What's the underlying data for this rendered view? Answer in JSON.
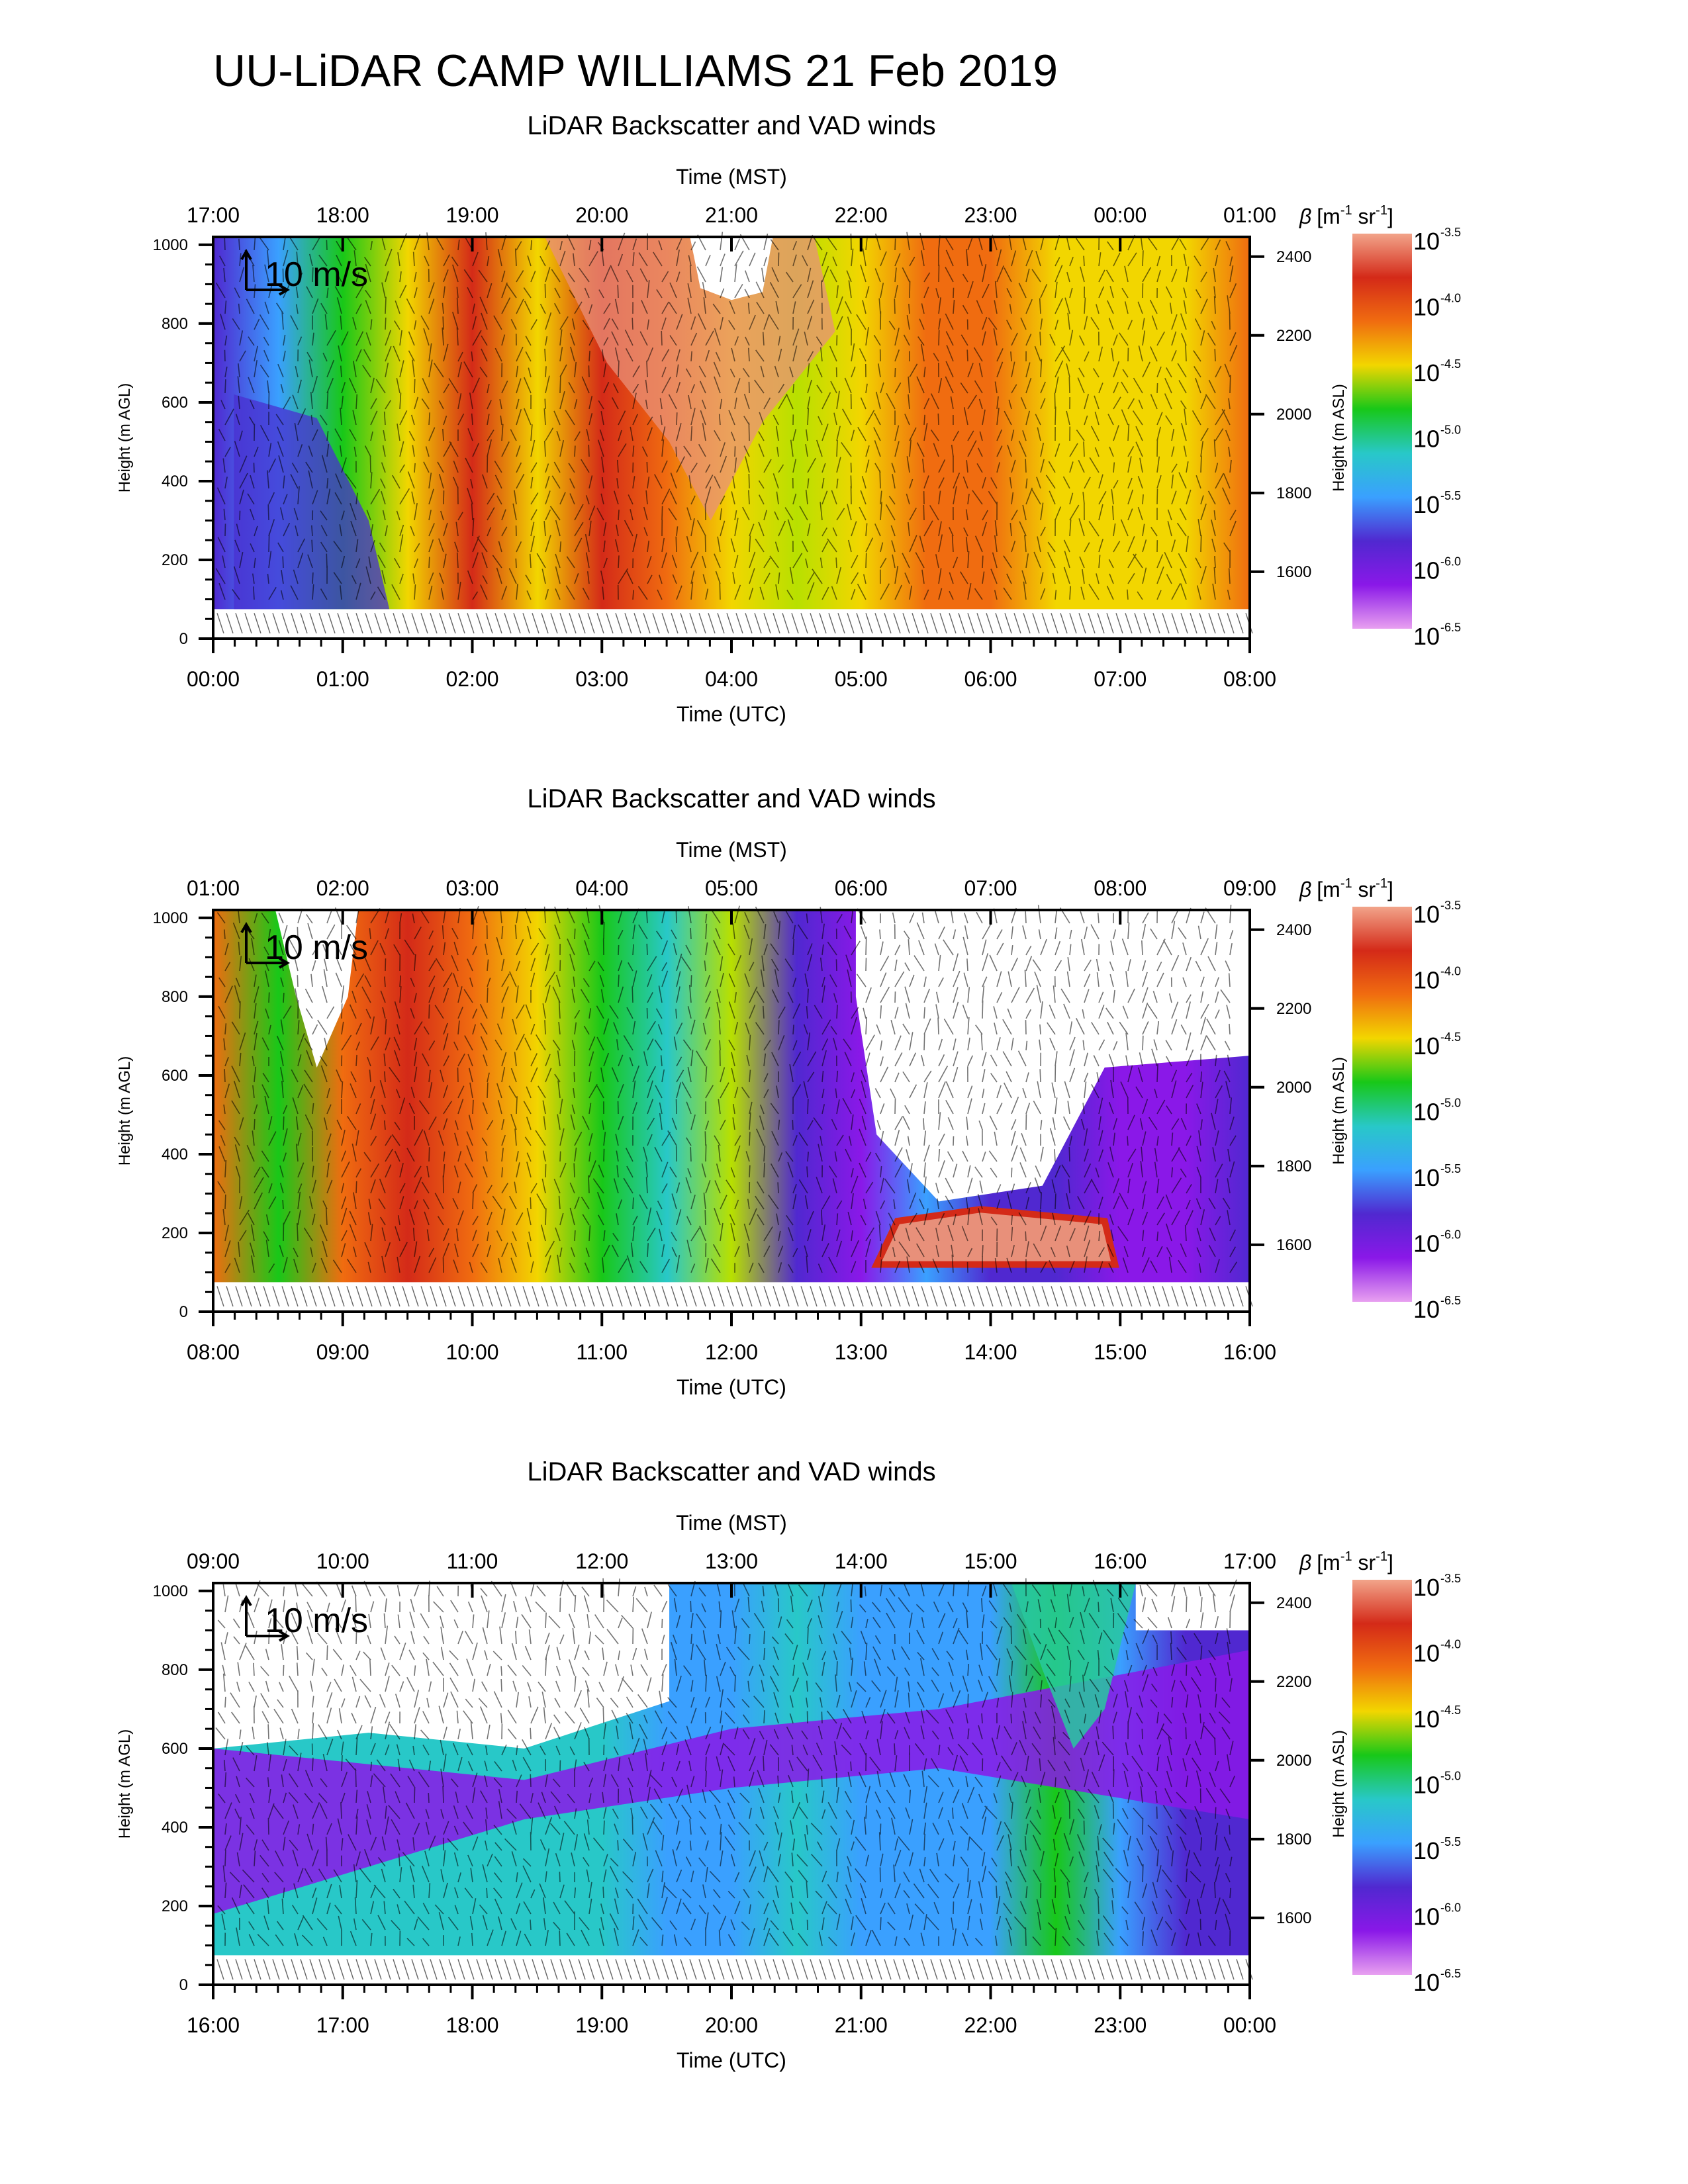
{
  "title": "UU-LiDAR CAMP WILLIAMS 21 Feb 2019",
  "colorbar": {
    "label_html": "β [m⁻¹ sr⁻¹]",
    "label_beta": "β",
    "label_units": "[m",
    "label_exp1": "-1",
    "label_sr": " sr",
    "label_exp2": "-1",
    "label_close": "]",
    "base": "10",
    "exponents": [
      "-3.5",
      "-4.0",
      "-4.5",
      "-5.0",
      "-5.5",
      "-6.0",
      "-6.5"
    ],
    "colors": [
      "#f2a48a",
      "#d42a18",
      "#f06c10",
      "#f2d600",
      "#18c818",
      "#28c8c8",
      "#3aa0ff",
      "#5028d0",
      "#8a18e8",
      "#e8a0f0"
    ]
  },
  "scale_arrow_label": "10 m/s",
  "axis_labels": {
    "x_top": "Time (MST)",
    "x_bottom": "Time (UTC)",
    "y_left": "Height (m AGL)",
    "y_right": "Height (m ASL)"
  },
  "chart_data": [
    {
      "type": "heatmap",
      "title": "LiDAR Backscatter and VAD winds",
      "x_utc_ticks": [
        "00:00",
        "01:00",
        "02:00",
        "03:00",
        "04:00",
        "05:00",
        "06:00",
        "07:00",
        "08:00"
      ],
      "x_mst_ticks": [
        "17:00",
        "18:00",
        "19:00",
        "20:00",
        "21:00",
        "22:00",
        "23:00",
        "00:00",
        "01:00"
      ],
      "y_agl_ticks": [
        0,
        200,
        400,
        600,
        800,
        1000
      ],
      "y_asl_ticks": [
        1600,
        1800,
        2000,
        2200,
        2400
      ],
      "ylim_agl": [
        0,
        1020
      ],
      "backscatter_exponent_profile": [
        -6.0,
        -5.8,
        -5.2,
        -4.6,
        -4.2,
        -4.5,
        -4.2,
        -4.4,
        -4.6,
        -4.8,
        -4.6,
        -4.4,
        -4.3,
        -4.5,
        -4.6,
        -4.5,
        -4.4
      ],
      "features": [
        "dense aerosol plume 02:00-04:30 UTC reaching 1000 m",
        "clean air 00:00-01:30 UTC",
        "small data gap near 1000 m at 04:00 UTC"
      ]
    },
    {
      "type": "heatmap",
      "title": "LiDAR Backscatter and VAD winds",
      "x_utc_ticks": [
        "08:00",
        "09:00",
        "10:00",
        "11:00",
        "12:00",
        "13:00",
        "14:00",
        "15:00",
        "16:00"
      ],
      "x_mst_ticks": [
        "01:00",
        "02:00",
        "03:00",
        "04:00",
        "05:00",
        "06:00",
        "07:00",
        "08:00",
        "09:00"
      ],
      "y_agl_ticks": [
        0,
        200,
        400,
        600,
        800,
        1000
      ],
      "y_asl_ticks": [
        1600,
        1800,
        2000,
        2200,
        2400
      ],
      "ylim_agl": [
        0,
        1020
      ],
      "backscatter_exponent_profile": [
        -4.4,
        -5.2,
        -4.4,
        -4.2,
        -4.3,
        -4.6,
        -5.0,
        -5.5,
        -4.8,
        -6.0,
        -6.2,
        -5.8,
        -6.0,
        -6.1,
        -6.2,
        -6.3,
        -6.1
      ],
      "features": [
        "aerosol layer collapsing after 12:00 UTC",
        "shallow dense layer near 200 m 13:00-15:00 UTC",
        "data gap above 300 m after 13:00 UTC"
      ]
    },
    {
      "type": "heatmap",
      "title": "LiDAR Backscatter and VAD winds",
      "x_utc_ticks": [
        "16:00",
        "17:00",
        "18:00",
        "19:00",
        "20:00",
        "21:00",
        "22:00",
        "23:00",
        "00:00"
      ],
      "x_mst_ticks": [
        "09:00",
        "10:00",
        "11:00",
        "12:00",
        "13:00",
        "14:00",
        "15:00",
        "16:00",
        "17:00"
      ],
      "y_agl_ticks": [
        0,
        200,
        400,
        600,
        800,
        1000
      ],
      "y_asl_ticks": [
        1600,
        1800,
        2000,
        2200,
        2400
      ],
      "ylim_agl": [
        0,
        1020
      ],
      "backscatter_exponent_profile": [
        -5.4,
        -5.5,
        -5.4,
        -5.3,
        -5.3,
        -5.4,
        -5.5,
        -5.6,
        -5.6,
        -5.5,
        -5.7,
        -5.8,
        -5.6,
        -5.2,
        -5.8,
        -5.9,
        -6.0
      ],
      "features": [
        "growing mixed layer from 150 m to 600 m",
        "high clean air above mixed layer",
        "data gaps in upper levels"
      ]
    }
  ]
}
